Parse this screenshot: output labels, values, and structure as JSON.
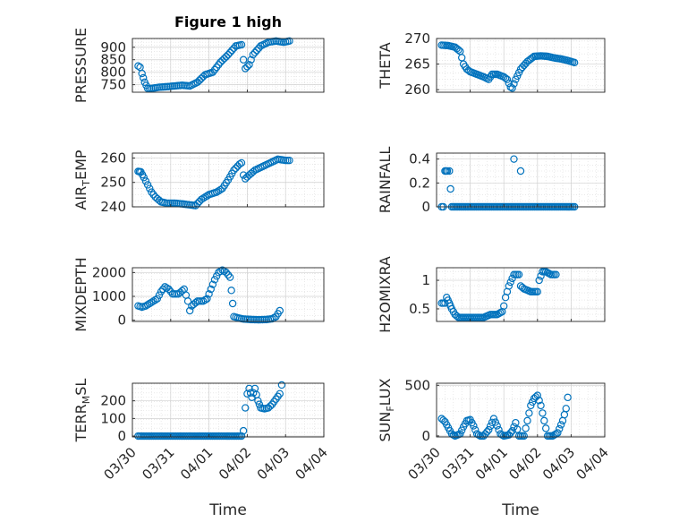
{
  "figure_title": "Figure 1 high",
  "xlabel": "Time",
  "x_ticks": [
    "03/30",
    "03/31",
    "04/01",
    "04/02",
    "04/03",
    "04/04"
  ],
  "marker_color": "#0072BD",
  "chart_data": [
    {
      "type": "scatter",
      "ylabel": "PRESSURE",
      "ylabel_parts": [
        [
          "PRESSURE",
          ""
        ]
      ],
      "title": "Figure 1 high",
      "xlim": [
        0,
        5
      ],
      "ylim": [
        720,
        935
      ],
      "y_ticks": [
        750,
        800,
        850,
        900
      ],
      "grid": true,
      "x_unit": "days after 03/30",
      "segments": [
        [
          [
            0.15,
            825
          ],
          [
            0.2,
            820
          ],
          [
            0.25,
            795
          ],
          [
            0.32,
            760
          ],
          [
            0.4,
            735
          ],
          [
            0.5,
            735
          ],
          [
            0.7,
            740
          ],
          [
            0.9,
            742
          ],
          [
            1.1,
            745
          ],
          [
            1.3,
            748
          ],
          [
            1.5,
            745
          ],
          [
            1.7,
            760
          ],
          [
            1.9,
            790
          ],
          [
            2.1,
            800
          ],
          [
            2.3,
            840
          ],
          [
            2.5,
            870
          ],
          [
            2.7,
            905
          ],
          [
            2.85,
            910
          ]
        ],
        [
          [
            2.9,
            850
          ],
          [
            2.95,
            815
          ],
          [
            3.05,
            830
          ],
          [
            3.15,
            870
          ],
          [
            3.35,
            905
          ],
          [
            3.55,
            920
          ],
          [
            3.75,
            925
          ],
          [
            3.95,
            920
          ],
          [
            4.1,
            925
          ]
        ]
      ]
    },
    {
      "type": "scatter",
      "ylabel": "THETA",
      "ylabel_parts": [
        [
          "THETA",
          ""
        ]
      ],
      "xlim": [
        0,
        5
      ],
      "ylim": [
        259.5,
        270
      ],
      "y_ticks": [
        260,
        265,
        270
      ],
      "grid": true,
      "x_unit": "days after 03/30",
      "segments": [
        [
          [
            0.15,
            268.7
          ],
          [
            0.35,
            268.6
          ],
          [
            0.55,
            268.3
          ],
          [
            0.7,
            267.5
          ],
          [
            0.8,
            265
          ],
          [
            0.9,
            264
          ],
          [
            1.0,
            263.5
          ],
          [
            1.2,
            263
          ],
          [
            1.4,
            262.5
          ],
          [
            1.55,
            262
          ],
          [
            1.65,
            263
          ],
          [
            1.8,
            263
          ],
          [
            2.0,
            262.5
          ],
          [
            2.1,
            262
          ],
          [
            2.2,
            260.5
          ],
          [
            2.25,
            260.3
          ],
          [
            2.35,
            262
          ],
          [
            2.5,
            264
          ],
          [
            2.7,
            265.5
          ],
          [
            2.9,
            266.5
          ],
          [
            3.1,
            266.6
          ],
          [
            3.3,
            266.5
          ],
          [
            3.5,
            266.2
          ],
          [
            3.7,
            266
          ],
          [
            3.9,
            265.7
          ],
          [
            4.1,
            265.3
          ]
        ]
      ]
    },
    {
      "type": "scatter",
      "ylabel": "AIR_TEMP",
      "ylabel_parts": [
        [
          "AIR",
          ""
        ],
        [
          "T",
          "sub"
        ],
        [
          "EMP",
          ""
        ]
      ],
      "xlim": [
        0,
        5
      ],
      "ylim": [
        240,
        262
      ],
      "y_ticks": [
        240,
        250,
        260
      ],
      "grid": true,
      "x_unit": "days after 03/30",
      "segments": [
        [
          [
            0.15,
            254.5
          ],
          [
            0.22,
            254.3
          ],
          [
            0.3,
            252
          ],
          [
            0.4,
            249
          ],
          [
            0.5,
            246
          ],
          [
            0.6,
            244
          ],
          [
            0.75,
            242
          ],
          [
            0.9,
            241.5
          ],
          [
            1.1,
            241.5
          ],
          [
            1.3,
            241.2
          ],
          [
            1.5,
            240.8
          ],
          [
            1.65,
            240.5
          ],
          [
            1.8,
            243
          ],
          [
            2.0,
            245
          ],
          [
            2.2,
            246
          ],
          [
            2.35,
            247.5
          ],
          [
            2.5,
            251
          ],
          [
            2.65,
            255
          ],
          [
            2.8,
            257.5
          ],
          [
            2.85,
            258
          ]
        ],
        [
          [
            2.9,
            253
          ],
          [
            2.95,
            251.5
          ],
          [
            3.05,
            253
          ],
          [
            3.2,
            255
          ],
          [
            3.4,
            256.5
          ],
          [
            3.6,
            258
          ],
          [
            3.8,
            259.5
          ],
          [
            4.0,
            259
          ],
          [
            4.1,
            259
          ]
        ]
      ]
    },
    {
      "type": "scatter",
      "ylabel": "RAINFALL",
      "ylabel_parts": [
        [
          "RAINFALL",
          ""
        ]
      ],
      "xlim": [
        0,
        5
      ],
      "ylim": [
        0,
        0.45
      ],
      "y_ticks": [
        0,
        0.2,
        0.4
      ],
      "grid": true,
      "x_unit": "days after 03/30",
      "segments": [
        [
          [
            0.15,
            0
          ],
          [
            0.2,
            0
          ],
          [
            0.25,
            0.3
          ],
          [
            0.32,
            0.3
          ],
          [
            0.38,
            0.3
          ],
          [
            0.45,
            0
          ],
          [
            1.0,
            0
          ],
          [
            1.5,
            0
          ],
          [
            2.0,
            0
          ],
          [
            2.5,
            0
          ],
          [
            3.0,
            0
          ],
          [
            3.5,
            0
          ],
          [
            4.0,
            0
          ],
          [
            4.1,
            0
          ]
        ]
      ],
      "extra_points": [
        [
          2.3,
          0.4
        ],
        [
          2.5,
          0.3
        ]
      ]
    },
    {
      "type": "scatter",
      "ylabel": "MIXDEPTH",
      "ylabel_parts": [
        [
          "MIXDEPTH",
          ""
        ]
      ],
      "xlim": [
        0,
        5
      ],
      "ylim": [
        -50,
        2200
      ],
      "y_ticks": [
        0,
        1000,
        2000
      ],
      "grid": true,
      "x_unit": "days after 03/30",
      "segments": [
        [
          [
            0.15,
            600
          ],
          [
            0.25,
            550
          ],
          [
            0.35,
            600
          ],
          [
            0.45,
            700
          ],
          [
            0.55,
            800
          ],
          [
            0.65,
            900
          ],
          [
            0.75,
            1200
          ],
          [
            0.85,
            1400
          ],
          [
            0.95,
            1300
          ],
          [
            1.05,
            1100
          ],
          [
            1.2,
            1100
          ],
          [
            1.35,
            1300
          ],
          [
            1.45,
            800
          ],
          [
            1.5,
            400
          ],
          [
            1.55,
            600
          ],
          [
            1.7,
            800
          ],
          [
            1.85,
            800
          ],
          [
            1.95,
            900
          ],
          [
            2.05,
            1300
          ],
          [
            2.15,
            1700
          ],
          [
            2.25,
            2000
          ],
          [
            2.35,
            2100
          ],
          [
            2.45,
            2000
          ],
          [
            2.55,
            1800
          ],
          [
            2.62,
            700
          ]
        ],
        [
          [
            2.65,
            150
          ],
          [
            2.75,
            100
          ],
          [
            2.9,
            50
          ],
          [
            3.1,
            30
          ],
          [
            3.3,
            20
          ],
          [
            3.5,
            30
          ],
          [
            3.65,
            60
          ],
          [
            3.75,
            150
          ],
          [
            3.85,
            400
          ]
        ]
      ]
    },
    {
      "type": "scatter",
      "ylabel": "H2OMIXRA",
      "ylabel_parts": [
        [
          "H2OMIXRA",
          ""
        ]
      ],
      "xlim": [
        0,
        5
      ],
      "ylim": [
        0.28,
        1.22
      ],
      "y_ticks": [
        0.5,
        1
      ],
      "grid": true,
      "x_unit": "days after 03/30",
      "segments": [
        [
          [
            0.15,
            0.6
          ],
          [
            0.25,
            0.6
          ],
          [
            0.3,
            0.7
          ],
          [
            0.38,
            0.6
          ],
          [
            0.45,
            0.5
          ],
          [
            0.55,
            0.4
          ],
          [
            0.65,
            0.35
          ],
          [
            0.8,
            0.35
          ],
          [
            1.0,
            0.35
          ],
          [
            1.2,
            0.35
          ],
          [
            1.4,
            0.35
          ],
          [
            1.6,
            0.4
          ],
          [
            1.8,
            0.4
          ],
          [
            1.95,
            0.45
          ],
          [
            2.0,
            0.55
          ],
          [
            2.05,
            0.7
          ],
          [
            2.15,
            0.9
          ],
          [
            2.3,
            1.1
          ],
          [
            2.45,
            1.1
          ],
          [
            2.5,
            0.9
          ],
          [
            2.6,
            0.85
          ],
          [
            2.8,
            0.8
          ],
          [
            2.9,
            0.8
          ],
          [
            3.0,
            0.8
          ],
          [
            3.05,
            1.0
          ],
          [
            3.15,
            1.15
          ],
          [
            3.25,
            1.15
          ],
          [
            3.4,
            1.1
          ],
          [
            3.55,
            1.1
          ]
        ]
      ]
    },
    {
      "type": "scatter",
      "ylabel": "TERR_MSL",
      "ylabel_parts": [
        [
          "TERR",
          ""
        ],
        [
          "M",
          "sub"
        ],
        [
          "SL",
          ""
        ]
      ],
      "xlim": [
        0,
        5
      ],
      "ylim": [
        -5,
        300
      ],
      "y_ticks": [
        0,
        100,
        200
      ],
      "grid": true,
      "x_unit": "days after 03/30",
      "segments": [
        [
          [
            0.15,
            0
          ],
          [
            0.5,
            0
          ],
          [
            1.0,
            0
          ],
          [
            1.5,
            0
          ],
          [
            2.0,
            0
          ],
          [
            2.5,
            0
          ],
          [
            2.85,
            0
          ]
        ],
        [
          [
            2.9,
            30
          ],
          [
            2.95,
            160
          ],
          [
            3.0,
            240
          ],
          [
            3.05,
            270
          ],
          [
            3.12,
            220
          ],
          [
            3.2,
            270
          ],
          [
            3.28,
            200
          ],
          [
            3.35,
            160
          ],
          [
            3.45,
            155
          ],
          [
            3.55,
            160
          ],
          [
            3.65,
            180
          ],
          [
            3.75,
            210
          ],
          [
            3.85,
            240
          ]
        ]
      ],
      "extra_points": [
        [
          3.9,
          290
        ]
      ]
    },
    {
      "type": "scatter",
      "ylabel": "SUN_FLUX",
      "ylabel_parts": [
        [
          "SUN",
          ""
        ],
        [
          "F",
          "sub"
        ],
        [
          "LUX",
          ""
        ]
      ],
      "xlim": [
        0,
        5
      ],
      "ylim": [
        -10,
        520
      ],
      "y_ticks": [
        0,
        500
      ],
      "grid": true,
      "x_unit": "days after 03/30",
      "segments": [
        [
          [
            0.15,
            170
          ],
          [
            0.25,
            140
          ],
          [
            0.35,
            80
          ],
          [
            0.45,
            20
          ],
          [
            0.55,
            0
          ],
          [
            0.7,
            20
          ],
          [
            0.8,
            90
          ],
          [
            0.9,
            150
          ],
          [
            1.0,
            160
          ],
          [
            1.1,
            100
          ],
          [
            1.2,
            20
          ],
          [
            1.3,
            0
          ],
          [
            1.4,
            0
          ],
          [
            1.55,
            60
          ],
          [
            1.7,
            170
          ],
          [
            1.8,
            100
          ],
          [
            1.9,
            20
          ],
          [
            2.0,
            0
          ],
          [
            2.15,
            10
          ],
          [
            2.25,
            50
          ],
          [
            2.35,
            130
          ],
          [
            2.45,
            0
          ],
          [
            2.6,
            0
          ],
          [
            2.7,
            150
          ],
          [
            2.8,
            300
          ],
          [
            2.9,
            370
          ],
          [
            3.0,
            400
          ],
          [
            3.1,
            300
          ],
          [
            3.2,
            150
          ],
          [
            3.3,
            0
          ],
          [
            3.45,
            0
          ],
          [
            3.6,
            30
          ],
          [
            3.75,
            150
          ],
          [
            3.85,
            270
          ],
          [
            3.9,
            380
          ]
        ]
      ]
    }
  ]
}
